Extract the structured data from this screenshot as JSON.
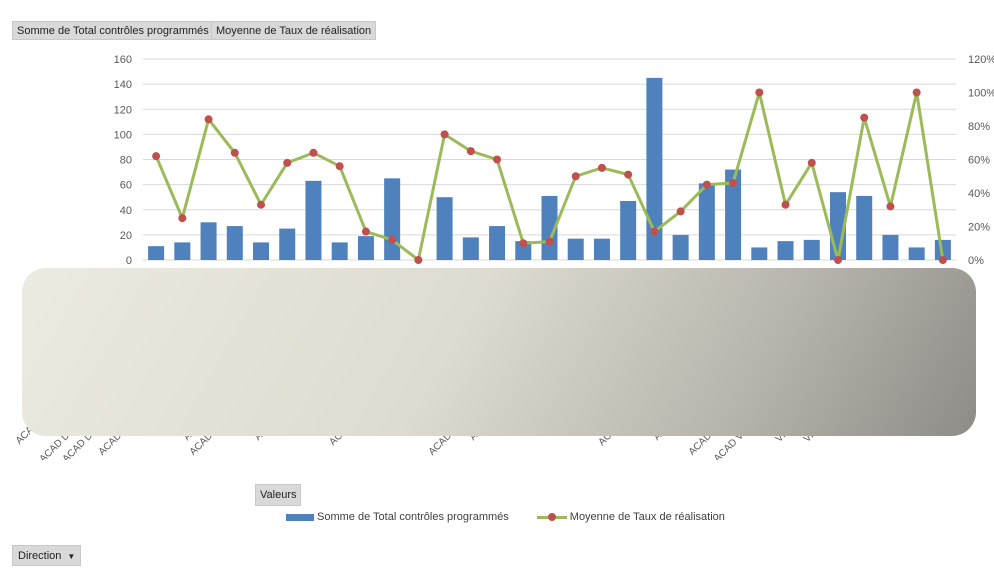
{
  "pivot_fields": {
    "sum_label": "Somme de Total contrôles programmés",
    "avg_label": "Moyenne de Taux de réalisation",
    "values_button": "Valeurs",
    "filter_button": "Direction",
    "filter_icon": "dropdown-arrow-icon"
  },
  "legend": {
    "bar_label": "Somme de Total contrôles programmés",
    "line_label": "Moyenne de Taux de réalisation"
  },
  "colors": {
    "bar": "#4f81bd",
    "line": "#9bbb59",
    "marker": "#c0504d",
    "grid": "#d9d9d9"
  },
  "chart_data": {
    "type": "bar",
    "combo_secondary_type": "line",
    "y_ticks": [
      "0",
      "20",
      "40",
      "60",
      "80",
      "100",
      "120",
      "140",
      "160"
    ],
    "y2_ticks": [
      "0%",
      "20%",
      "40%",
      "60%",
      "80%",
      "100%",
      "120%"
    ],
    "ylim": [
      0,
      160
    ],
    "y2lim": [
      0,
      1.2
    ],
    "grid": true,
    "legend_position": "bottom",
    "visible_category_fragments": [
      "ACA",
      "ACAD D",
      "ACAD D",
      "ACAD",
      "A",
      "ACAD",
      "A",
      "AC",
      "ACAD",
      "A",
      "AC",
      "A",
      "ACAD",
      "ACAD V",
      "VI",
      "VI"
    ],
    "series": [
      {
        "name": "Somme de Total contrôles programmés",
        "type": "bar",
        "axis": "primary",
        "values": [
          11,
          14,
          30,
          27,
          14,
          25,
          63,
          14,
          19,
          65,
          0,
          50,
          18,
          27,
          15,
          51,
          17,
          17,
          47,
          145,
          20,
          61,
          72,
          10,
          15,
          16,
          54,
          51,
          20,
          10,
          16
        ]
      },
      {
        "name": "Moyenne de Taux de réalisation",
        "type": "line",
        "axis": "secondary",
        "values": [
          0.62,
          0.25,
          0.84,
          0.64,
          0.33,
          0.58,
          0.64,
          0.56,
          0.17,
          0.12,
          0.0,
          0.75,
          0.65,
          0.6,
          0.1,
          0.11,
          0.5,
          0.55,
          0.51,
          0.17,
          0.29,
          0.45,
          0.46,
          1.0,
          0.33,
          0.58,
          0.0,
          0.85,
          0.32,
          1.0,
          0.0
        ]
      }
    ]
  }
}
